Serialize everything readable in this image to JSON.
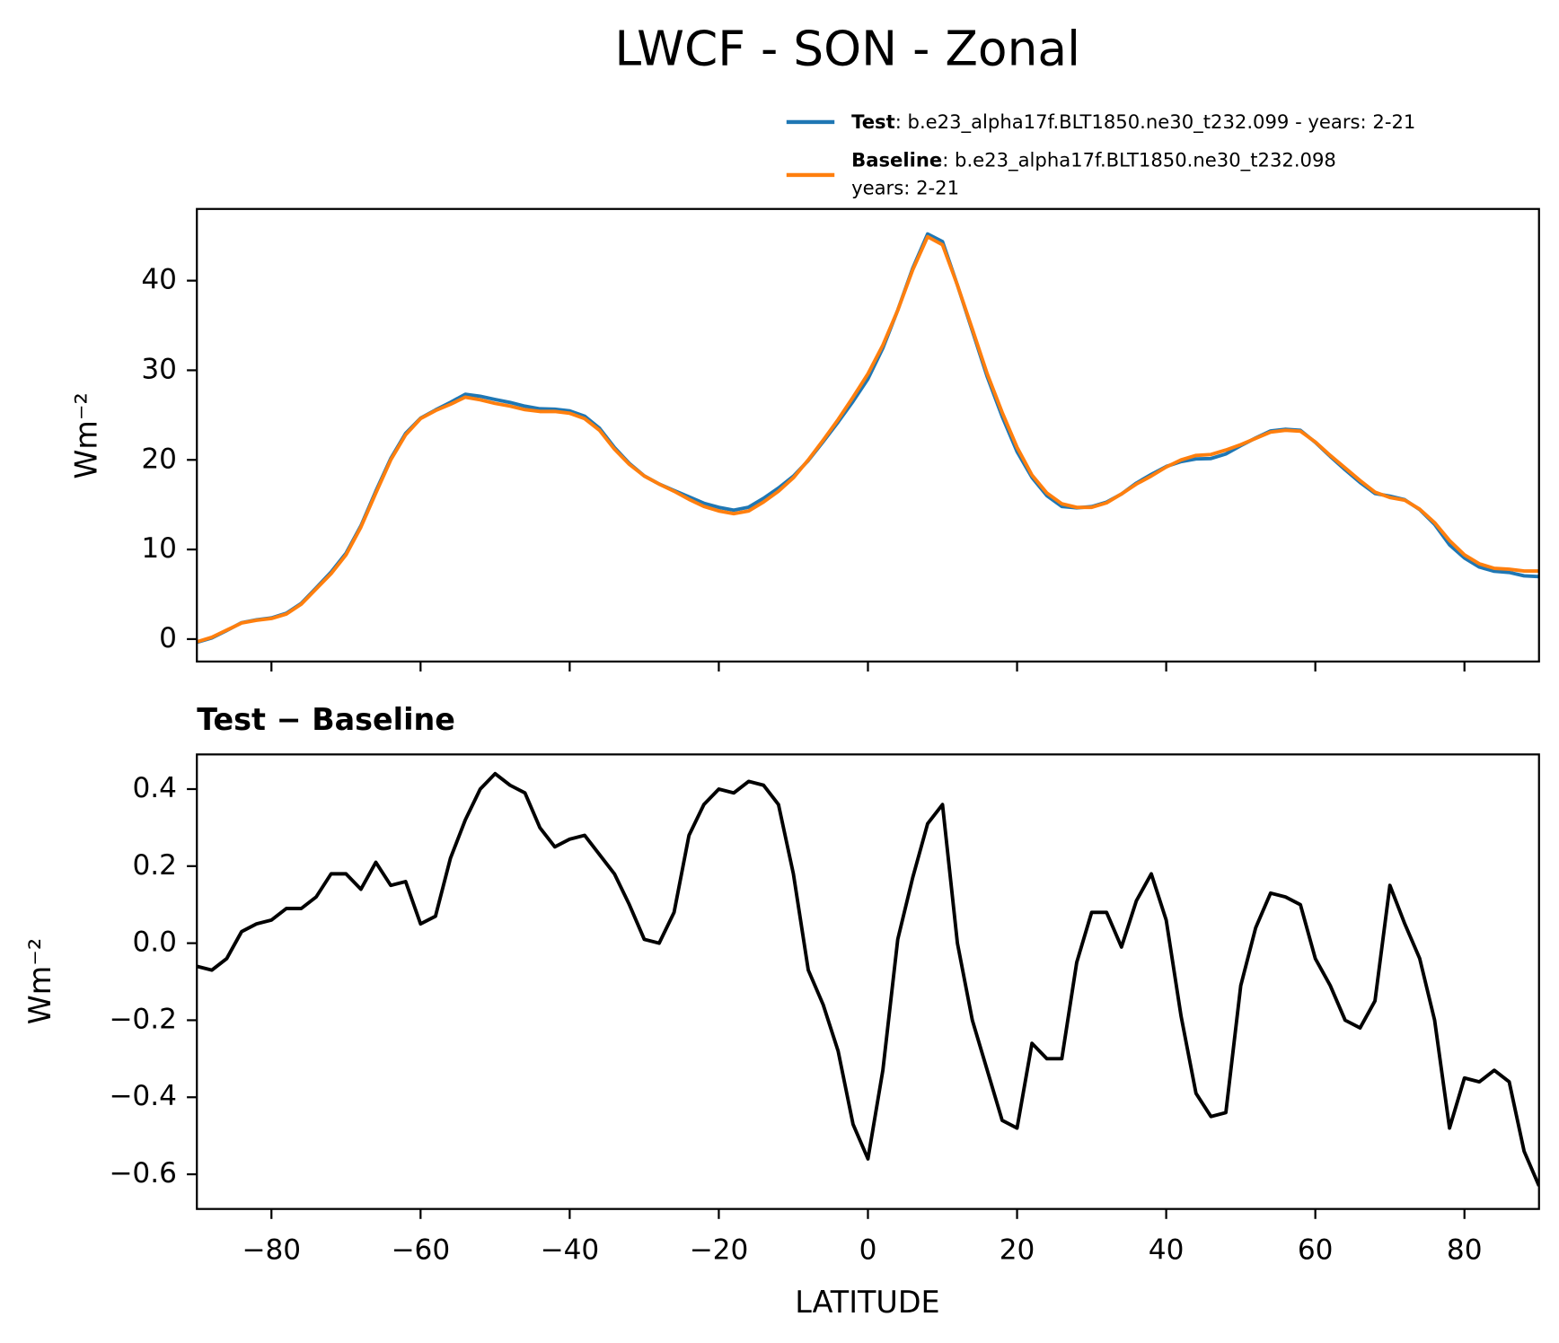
{
  "chart_data": [
    {
      "type": "line",
      "title": "LWCF - SON - Zonal",
      "ylabel": "Wm⁻²",
      "x": [
        -90,
        -88,
        -86,
        -84,
        -82,
        -80,
        -78,
        -76,
        -74,
        -72,
        -70,
        -68,
        -66,
        -64,
        -62,
        -60,
        -58,
        -56,
        -54,
        -52,
        -50,
        -48,
        -46,
        -44,
        -42,
        -40,
        -38,
        -36,
        -34,
        -32,
        -30,
        -28,
        -26,
        -24,
        -22,
        -20,
        -18,
        -16,
        -14,
        -12,
        -10,
        -8,
        -6,
        -4,
        -2,
        0,
        2,
        4,
        6,
        8,
        10,
        12,
        14,
        16,
        18,
        20,
        22,
        24,
        26,
        28,
        30,
        32,
        34,
        36,
        38,
        40,
        42,
        44,
        46,
        48,
        50,
        52,
        54,
        56,
        58,
        60,
        62,
        64,
        66,
        68,
        70,
        72,
        74,
        76,
        78,
        80,
        82,
        84,
        86,
        88,
        90
      ],
      "series": [
        {
          "name": "Test",
          "label": ": b.e23_alpha17f.BLT1850.ne30_t232.099 - years: 2-21",
          "color": "#1f77b4",
          "values": [
            -0.36,
            0.13,
            0.96,
            1.83,
            2.15,
            2.36,
            2.89,
            3.99,
            5.72,
            7.48,
            9.58,
            12.64,
            16.51,
            20.15,
            22.96,
            24.65,
            25.57,
            26.42,
            27.32,
            27.1,
            26.74,
            26.41,
            25.99,
            25.7,
            25.65,
            25.47,
            24.88,
            23.53,
            21.38,
            19.6,
            18.21,
            17.3,
            16.58,
            15.88,
            15.16,
            14.7,
            14.39,
            14.72,
            15.71,
            16.86,
            18.18,
            19.93,
            22.04,
            24.22,
            26.53,
            29.04,
            32.47,
            36.71,
            41.37,
            45.21,
            44.36,
            39.5,
            34.4,
            29.27,
            24.84,
            20.92,
            18.04,
            16.0,
            14.8,
            14.65,
            14.78,
            15.28,
            16.19,
            17.41,
            18.38,
            19.26,
            19.81,
            20.11,
            20.15,
            20.66,
            21.59,
            22.44,
            23.23,
            23.42,
            23.3,
            21.96,
            20.39,
            18.9,
            17.48,
            16.25,
            15.95,
            15.55,
            14.46,
            12.8,
            10.52,
            9.05,
            8.04,
            7.57,
            7.44,
            7.06,
            6.97
          ]
        },
        {
          "name": "Baseline",
          "label": [
            ": b.e23_alpha17f.BLT1850.ne30_t232.098",
            "years: 2-21"
          ],
          "color": "#ff7f0e",
          "values": [
            -0.3,
            0.2,
            1.0,
            1.8,
            2.1,
            2.3,
            2.8,
            3.9,
            5.6,
            7.3,
            9.4,
            12.5,
            16.3,
            20.0,
            22.8,
            24.6,
            25.5,
            26.2,
            27.0,
            26.7,
            26.3,
            26.0,
            25.6,
            25.4,
            25.4,
            25.2,
            24.6,
            23.3,
            21.2,
            19.5,
            18.2,
            17.3,
            16.5,
            15.6,
            14.8,
            14.3,
            14.0,
            14.3,
            15.3,
            16.5,
            18.0,
            20.0,
            22.2,
            24.5,
            27.0,
            29.6,
            32.8,
            36.7,
            41.2,
            44.9,
            44.0,
            39.5,
            34.6,
            29.6,
            25.3,
            21.4,
            18.3,
            16.3,
            15.1,
            14.7,
            14.7,
            15.2,
            16.2,
            17.3,
            18.2,
            19.2,
            20.0,
            20.5,
            20.6,
            21.1,
            21.7,
            22.4,
            23.1,
            23.3,
            23.2,
            22.0,
            20.5,
            19.1,
            17.7,
            16.4,
            15.8,
            15.5,
            14.5,
            13.0,
            11.0,
            9.4,
            8.4,
            7.9,
            7.8,
            7.6,
            7.6
          ]
        }
      ],
      "xlim": [
        -90,
        90
      ],
      "xticks": [
        -80,
        -60,
        -40,
        -20,
        0,
        20,
        40,
        60,
        80
      ],
      "ylim": [
        -2.5,
        48
      ],
      "yticks": [
        0,
        10,
        20,
        30,
        40
      ]
    },
    {
      "type": "line",
      "title": "Test − Baseline",
      "xlabel": "LATITUDE",
      "ylabel": "Wm⁻²",
      "x": [
        -90,
        -88,
        -86,
        -84,
        -82,
        -80,
        -78,
        -76,
        -74,
        -72,
        -70,
        -68,
        -66,
        -64,
        -62,
        -60,
        -58,
        -56,
        -54,
        -52,
        -50,
        -48,
        -46,
        -44,
        -42,
        -40,
        -38,
        -36,
        -34,
        -32,
        -30,
        -28,
        -26,
        -24,
        -22,
        -20,
        -18,
        -16,
        -14,
        -12,
        -10,
        -8,
        -6,
        -4,
        -2,
        0,
        2,
        4,
        6,
        8,
        10,
        12,
        14,
        16,
        18,
        20,
        22,
        24,
        26,
        28,
        30,
        32,
        34,
        36,
        38,
        40,
        42,
        44,
        46,
        48,
        50,
        52,
        54,
        56,
        58,
        60,
        62,
        64,
        66,
        68,
        70,
        72,
        74,
        76,
        78,
        80,
        82,
        84,
        86,
        88,
        90
      ],
      "series": [
        {
          "name": "Test − Baseline",
          "color": "#000000",
          "values": [
            -0.06,
            -0.07,
            -0.04,
            0.03,
            0.05,
            0.06,
            0.09,
            0.09,
            0.12,
            0.18,
            0.18,
            0.14,
            0.21,
            0.15,
            0.16,
            0.05,
            0.07,
            0.22,
            0.32,
            0.4,
            0.44,
            0.41,
            0.39,
            0.3,
            0.25,
            0.27,
            0.28,
            0.23,
            0.18,
            0.1,
            0.01,
            0.0,
            0.08,
            0.28,
            0.36,
            0.4,
            0.39,
            0.42,
            0.41,
            0.36,
            0.18,
            -0.07,
            -0.16,
            -0.28,
            -0.47,
            -0.56,
            -0.33,
            0.01,
            0.17,
            0.31,
            0.36,
            0.0,
            -0.2,
            -0.33,
            -0.46,
            -0.48,
            -0.26,
            -0.3,
            -0.3,
            -0.05,
            0.08,
            0.08,
            -0.01,
            0.11,
            0.18,
            0.06,
            -0.19,
            -0.39,
            -0.45,
            -0.44,
            -0.11,
            0.04,
            0.13,
            0.12,
            0.1,
            -0.04,
            -0.11,
            -0.2,
            -0.22,
            -0.15,
            0.15,
            0.05,
            -0.04,
            -0.2,
            -0.48,
            -0.35,
            -0.36,
            -0.33,
            -0.36,
            -0.54,
            -0.63
          ]
        }
      ],
      "xlim": [
        -90,
        90
      ],
      "xticks": [
        {
          "value": -80,
          "label": "−80"
        },
        {
          "value": -60,
          "label": "−60"
        },
        {
          "value": -40,
          "label": "−40"
        },
        {
          "value": -20,
          "label": "−20"
        },
        0,
        20,
        40,
        60,
        80
      ],
      "ylim": [
        -0.69,
        0.49
      ],
      "yticks": [
        {
          "value": -0.6,
          "label": "−0.6"
        },
        {
          "value": -0.4,
          "label": "−0.4"
        },
        {
          "value": -0.2,
          "label": "−0.2"
        },
        {
          "value": 0,
          "label": "0.0"
        },
        0.2,
        0.4
      ]
    }
  ]
}
